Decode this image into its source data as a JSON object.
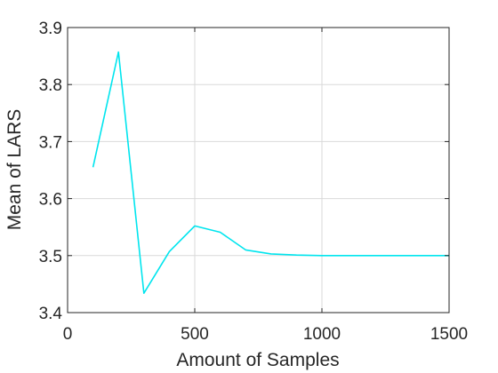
{
  "chart_data": {
    "type": "line",
    "xlabel": "Amount of Samples",
    "ylabel": "Mean of LARS",
    "xlim": [
      0,
      1500
    ],
    "ylim": [
      3.4,
      3.9
    ],
    "xticks": [
      0,
      500,
      1000,
      1500
    ],
    "yticks": [
      3.4,
      3.5,
      3.6,
      3.7,
      3.8,
      3.9
    ],
    "xtick_labels": [
      "0",
      "500",
      "1000",
      "1500"
    ],
    "ytick_labels": [
      "3.4",
      "3.5",
      "3.6",
      "3.7",
      "3.8",
      "3.9"
    ],
    "grid": true,
    "series": [
      {
        "color": "#00e5ee",
        "x": [
          100,
          200,
          300,
          400,
          500,
          600,
          700,
          800,
          900,
          1000,
          1100,
          1200,
          1300,
          1400,
          1500
        ],
        "y": [
          3.655,
          3.857,
          3.434,
          3.507,
          3.552,
          3.541,
          3.51,
          3.503,
          3.501,
          3.5,
          3.5,
          3.5,
          3.5,
          3.5,
          3.5
        ]
      }
    ]
  }
}
